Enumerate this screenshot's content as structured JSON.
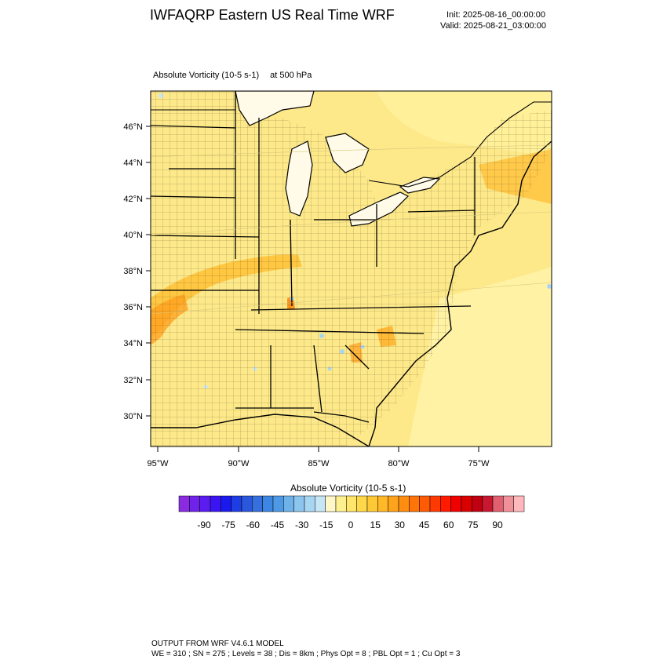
{
  "header": {
    "title": "IWFAQRP Eastern US Real Time WRF",
    "init": "Init: 2025-08-16_00:00:00",
    "valid": "Valid: 2025-08-21_03:00:00"
  },
  "field": {
    "name": "Absolute Vorticity   (10-5 s-1)",
    "level": "at   500 hPa"
  },
  "map": {
    "lat_labels": [
      "46°N",
      "44°N",
      "42°N",
      "40°N",
      "38°N",
      "36°N",
      "34°N",
      "32°N",
      "30°N"
    ],
    "lon_labels": [
      "95°W",
      "90°W",
      "85°W",
      "80°W",
      "75°W"
    ],
    "background_color": "#fde98a"
  },
  "colorbar": {
    "title": "Absolute Vorticity  (10-5 s-1)",
    "tick_labels": [
      "-90",
      "-75",
      "-60",
      "-45",
      "-30",
      "-15",
      "0",
      "15",
      "30",
      "45",
      "60",
      "75",
      "90"
    ],
    "colors": [
      "#8a2be2",
      "#6f22e8",
      "#5b1cf0",
      "#3a15f2",
      "#1a1aef",
      "#1e3de2",
      "#2a57dc",
      "#3670dc",
      "#3d86e2",
      "#4d99e6",
      "#6fb2ea",
      "#8cc6ee",
      "#a8d6f2",
      "#c6e6f6",
      "#fff7c8",
      "#fff08f",
      "#ffe56a",
      "#ffd84a",
      "#ffc936",
      "#ffb828",
      "#ffa31c",
      "#ff8d10",
      "#ff7408",
      "#ff5a04",
      "#ff3a00",
      "#ff1a00",
      "#f00000",
      "#d80000",
      "#c00010",
      "#c81830",
      "#e06070",
      "#f09098",
      "#ffb8bc"
    ]
  },
  "footer": {
    "line1": "OUTPUT FROM WRF V4.6.1 MODEL",
    "line2": "WE = 310 ; SN = 275 ; Levels = 38 ; Dis = 8km ; Phys Opt = 8 ; PBL Opt = 1 ; Cu Opt = 3"
  }
}
